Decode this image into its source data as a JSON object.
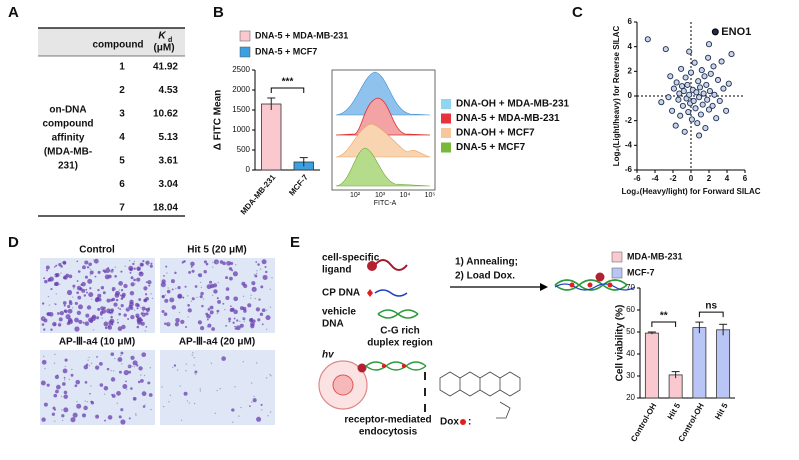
{
  "panels": [
    "A",
    "B",
    "C",
    "D",
    "E"
  ],
  "table": {
    "header_compound": "compound",
    "header_k": "K",
    "header_k_sub": "d",
    "header_unit": "(μM)",
    "row_label": [
      "on-DNA",
      "compound",
      "affinity",
      "(MDA-MB-",
      "231)"
    ],
    "rows": [
      [
        1,
        41.92
      ],
      [
        2,
        4.53
      ],
      [
        3,
        10.62
      ],
      [
        4,
        5.13
      ],
      [
        5,
        3.61
      ],
      [
        6,
        3.04
      ],
      [
        7,
        18.04
      ]
    ]
  },
  "chart_data": [
    {
      "type": "bar",
      "ylabel": "Δ FITC Mean",
      "categories": [
        "MDA-MB-231",
        "MCF-7"
      ],
      "series": [
        {
          "name": "DNA-5 + MDA-MB-231",
          "color": "#f9c9cf",
          "values": [
            1650,
            null
          ],
          "errors": [
            150,
            null
          ]
        },
        {
          "name": "DNA-5 + MCF7",
          "color": "#3aa0e0",
          "values": [
            null,
            200
          ],
          "errors": [
            null,
            110
          ]
        }
      ],
      "ylim": [
        0,
        2500
      ],
      "yticks": [
        0,
        500,
        1000,
        1500,
        2000,
        2500
      ],
      "annotations": [
        "***"
      ]
    },
    {
      "type": "scatter",
      "xlabel": "Log₂(Heavy/light) for Forward SILAC",
      "ylabel": "Log₂(Light/heavy) for Reverse SILAC",
      "xlim": [
        -6,
        6
      ],
      "xticks": [
        -6,
        -4,
        -2,
        0,
        2,
        4,
        6
      ],
      "ylim": [
        -6,
        6
      ],
      "yticks": [
        -6,
        -4,
        -2,
        0,
        2,
        4,
        6
      ],
      "x": [
        -4.8,
        -3.3,
        -2.8,
        -2.3,
        -2.1,
        -1.9,
        -1.7,
        -1.6,
        -1.4,
        -1.3,
        -1.2,
        -1.1,
        -1.0,
        -0.9,
        -0.8,
        -0.7,
        -0.6,
        -0.5,
        -0.4,
        -0.3,
        -0.2,
        -0.1,
        0.0,
        0.1,
        0.2,
        0.3,
        0.4,
        0.5,
        0.6,
        0.7,
        0.8,
        0.9,
        1.0,
        1.1,
        1.2,
        1.3,
        1.4,
        1.5,
        1.6,
        1.7,
        1.8,
        1.9,
        2.0,
        2.1,
        2.2,
        2.4,
        2.5,
        2.6,
        2.8,
        3.0,
        3.2,
        3.4,
        3.6,
        3.9,
        4.2,
        4.5,
        -2.5,
        -0.2,
        0.9,
        2.0
      ],
      "y": [
        4.6,
        -0.5,
        3.8,
        1.6,
        -1.2,
        0.6,
        -2.4,
        1.1,
        -0.3,
        0.2,
        -1.6,
        2.2,
        0.8,
        -0.8,
        0.4,
        -2.9,
        1.5,
        -0.2,
        0.9,
        -1.3,
        0.1,
        -0.6,
        1.9,
        -1.9,
        0.5,
        -0.4,
        2.7,
        -1.0,
        0.3,
        -2.2,
        1.2,
        -0.1,
        0.7,
        -1.5,
        2.1,
        -0.7,
        0.2,
        1.6,
        -2.6,
        0.9,
        -0.3,
        3.1,
        -1.1,
        0.4,
        1.8,
        -0.8,
        2.4,
        0.1,
        -1.8,
        1.3,
        -0.4,
        2.8,
        0.6,
        -1.2,
        1.0,
        3.4,
        -0.1,
        3.6,
        -3.2,
        4.2
      ],
      "highlight": {
        "label": "ENO1",
        "x": 2.7,
        "y": 5.2,
        "color": "#e0201b"
      }
    },
    {
      "type": "bar",
      "ylabel": "Cell viability (%)",
      "categories": [
        "Control-OH",
        "Hit 5",
        "Control-OH",
        "Hit 5"
      ],
      "series": [
        {
          "name": "MDA-MB-231",
          "color": "#f9c9cf",
          "values": [
            49.5,
            30.5,
            null,
            null
          ],
          "errors": [
            0.5,
            1.5,
            null,
            null
          ]
        },
        {
          "name": "MCF-7",
          "color": "#b9c6f5",
          "values": [
            null,
            null,
            52,
            51
          ],
          "errors": [
            null,
            null,
            2.5,
            2.5
          ]
        }
      ],
      "ylim": [
        20,
        70
      ],
      "yticks": [
        20,
        30,
        40,
        50,
        60,
        70
      ],
      "annotations": [
        "**",
        "ns"
      ]
    }
  ],
  "flow": {
    "xlabel": "FITC-A",
    "xticks": [
      "10²",
      "10³",
      "10⁴",
      "10⁵"
    ],
    "legend": [
      {
        "name": "DNA-OH + MDA-MB-231",
        "color": "#8fd6f0"
      },
      {
        "name": "DNA-5 + MDA-MB-231",
        "color": "#e8333a"
      },
      {
        "name": "DNA-OH + MCF7",
        "color": "#f7c79b"
      },
      {
        "name": "DNA-5 + MCF7",
        "color": "#78b83a"
      }
    ]
  },
  "microscopy": {
    "labels": [
      "Control",
      "Hit 5 (20 μM)",
      "AP-Ⅲ-a4 (10 μM)",
      "AP-Ⅲ-a4 (20 μM)"
    ]
  },
  "diagram": {
    "ligand": [
      "cell-specific",
      "ligand"
    ],
    "cp_dna": "CP DNA",
    "vehicle": [
      "vehicle",
      "DNA"
    ],
    "duplex": [
      "C-G rich",
      "duplex region"
    ],
    "steps": [
      "1) Annealing;",
      "2) Load Dox."
    ],
    "hv": "hv",
    "endocytosis": [
      "receptor-mediated",
      "endocytosis"
    ],
    "dox": "Dox",
    "dox_colon": ":"
  }
}
